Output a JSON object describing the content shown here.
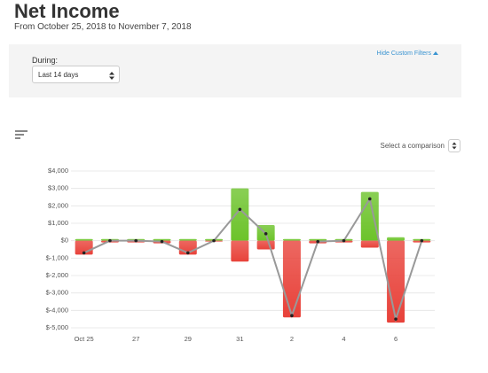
{
  "header": {
    "title": "Net Income",
    "subtitle": "From October 25, 2018 to November 7, 2018"
  },
  "filters": {
    "during_label": "During:",
    "during_value": "Last 14 days",
    "hide_link": "Hide Custom Filters"
  },
  "comparison_label": "Select a comparison",
  "chart_data": {
    "type": "bar",
    "categories": [
      "Oct 25",
      null,
      "27",
      null,
      "29",
      null,
      "31",
      null,
      "2",
      null,
      "4",
      null,
      "6",
      null
    ],
    "series": [
      {
        "color": "#6cc32a",
        "values": [
          100,
          100,
          100,
          100,
          100,
          100,
          3000,
          900,
          100,
          100,
          100,
          2800,
          200,
          100
        ]
      },
      {
        "color": "#e8423a",
        "values": [
          -800,
          -100,
          -100,
          -150,
          -800,
          -50,
          -1200,
          -500,
          -4400,
          -150,
          -100,
          -400,
          -4700,
          -100
        ]
      },
      {
        "type": "line",
        "color": "#999999",
        "values": [
          -700,
          0,
          0,
          -50,
          -700,
          0,
          1800,
          400,
          -4300,
          -50,
          0,
          2400,
          -4500,
          0
        ]
      }
    ],
    "ylim": [
      -5000,
      4000
    ],
    "yticks": [
      {
        "value": -5000,
        "label": "$-5,000"
      },
      {
        "value": -4000,
        "label": "$-4,000"
      },
      {
        "value": -3000,
        "label": "$-3,000"
      },
      {
        "value": -2000,
        "label": "$-2,000"
      },
      {
        "value": -1000,
        "label": "$-1,000"
      },
      {
        "value": 0,
        "label": "$0"
      },
      {
        "value": 1000,
        "label": "$1,000"
      },
      {
        "value": 2000,
        "label": "$2,000"
      },
      {
        "value": 3000,
        "label": "$3,000"
      },
      {
        "value": 4000,
        "label": "$4,000"
      }
    ],
    "grid": true
  }
}
